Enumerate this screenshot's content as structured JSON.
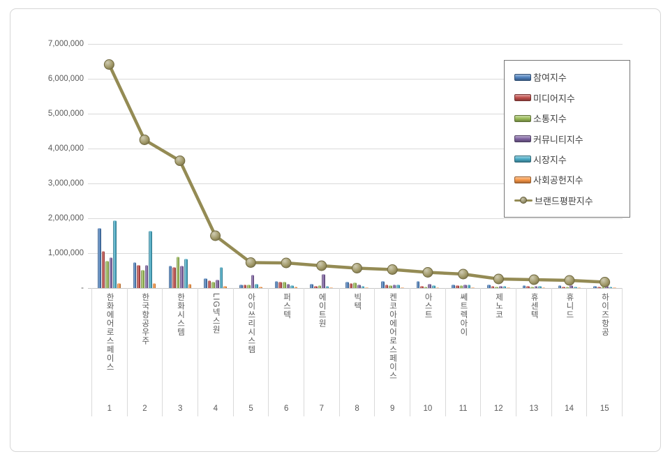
{
  "chart_data": {
    "type": "bar",
    "subtype": "grouped-bars-with-line-overlay",
    "title": "",
    "xlabel": "",
    "ylabel": "",
    "grid": true,
    "legend_position": "inside-right",
    "y_axis": {
      "min": 0,
      "max": 7000000,
      "step": 1000000,
      "zero_label": "-",
      "tick_labels": [
        "1,000,000",
        "2,000,000",
        "3,000,000",
        "4,000,000",
        "5,000,000",
        "6,000,000",
        "7,000,000"
      ]
    },
    "categories": [
      "한화에어로스페이스",
      "한국항공우주",
      "한화시스템",
      "LIG넥스원",
      "아이쓰리시스템",
      "퍼스텍",
      "에이트원",
      "빅텍",
      "켄코아에어로스페이스",
      "아스트",
      "쎄트렉아이",
      "제노코",
      "휴센텍",
      "휴니드",
      "하이즈항공"
    ],
    "ranks": [
      "1",
      "2",
      "3",
      "4",
      "5",
      "6",
      "7",
      "8",
      "9",
      "10",
      "11",
      "12",
      "13",
      "14",
      "15"
    ],
    "series": [
      {
        "name": "참여지수",
        "color": "#4F81BD",
        "values": [
          1700000,
          730000,
          620000,
          270000,
          90000,
          190000,
          100000,
          170000,
          180000,
          190000,
          90000,
          90000,
          70000,
          70000,
          50000
        ]
      },
      {
        "name": "미디어지수",
        "color": "#C0504D",
        "values": [
          1050000,
          640000,
          590000,
          200000,
          80000,
          160000,
          50000,
          120000,
          90000,
          40000,
          70000,
          40000,
          40000,
          30000,
          30000
        ]
      },
      {
        "name": "소통지수",
        "color": "#9BBB59",
        "values": [
          770000,
          500000,
          880000,
          170000,
          80000,
          170000,
          60000,
          140000,
          70000,
          30000,
          60000,
          30000,
          30000,
          20000,
          20000
        ]
      },
      {
        "name": "커뮤니티지수",
        "color": "#8064A2",
        "values": [
          870000,
          640000,
          620000,
          230000,
          360000,
          110000,
          380000,
          80000,
          90000,
          110000,
          80000,
          50000,
          50000,
          60000,
          40000
        ]
      },
      {
        "name": "시장지수",
        "color": "#4BACC6",
        "values": [
          1930000,
          1620000,
          830000,
          590000,
          100000,
          70000,
          40000,
          50000,
          90000,
          70000,
          90000,
          40000,
          40000,
          30000,
          20000
        ]
      },
      {
        "name": "사회공헌지수",
        "color": "#F79646",
        "values": [
          120000,
          120000,
          110000,
          40000,
          20000,
          20000,
          10000,
          10000,
          10000,
          10000,
          10000,
          10000,
          10000,
          10000,
          10000
        ]
      }
    ],
    "line_series": {
      "name": "브랜드평판지수",
      "color": "#948B54",
      "values": [
        6410000,
        4250000,
        3650000,
        1500000,
        730000,
        720000,
        640000,
        570000,
        530000,
        450000,
        400000,
        260000,
        240000,
        220000,
        170000
      ]
    }
  },
  "legend": {
    "items": [
      "참여지수",
      "미디어지수",
      "소통지수",
      "커뮤니티지수",
      "시장지수",
      "사회공헌지수",
      "브랜드평판지수"
    ]
  }
}
